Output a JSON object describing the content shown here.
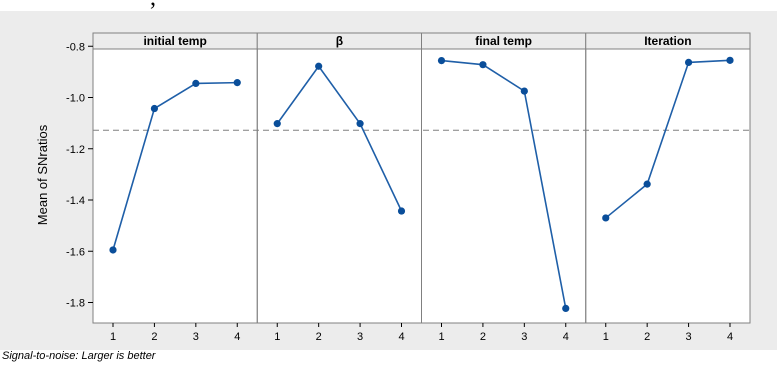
{
  "header_text": ", ",
  "footnote": "Signal-to-noise: Larger is better",
  "colors": {
    "line": "#1f5fa8",
    "marker": "#0a4e9a",
    "reference": "#808080",
    "panel_bg": "#ffffff",
    "outer_bg": "#ececec",
    "strip_bg": "#ececec"
  },
  "chart_data": {
    "type": "line",
    "title": "",
    "xlabel": "",
    "ylabel": "Mean of SNratios",
    "ylim": [
      -1.88,
      -0.76
    ],
    "yticks": [
      -0.8,
      -1.0,
      -1.2,
      -1.4,
      -1.6,
      -1.8
    ],
    "ytick_labels": [
      "-0.8",
      "-1.0",
      "-1.2",
      "-1.4",
      "-1.6",
      "-1.8"
    ],
    "categories": [
      "1",
      "2",
      "3",
      "4"
    ],
    "reference_line": -1.128,
    "reference_style": "dashed",
    "panels": [
      {
        "name": "initial temp",
        "values": [
          -1.595,
          -1.043,
          -0.945,
          -0.942
        ]
      },
      {
        "name": "β",
        "values": [
          -1.102,
          -0.878,
          -1.102,
          -1.443
        ]
      },
      {
        "name": "final temp",
        "values": [
          -0.856,
          -0.872,
          -0.975,
          -1.823
        ]
      },
      {
        "name": "Iteration",
        "values": [
          -1.47,
          -1.338,
          -0.863,
          -0.855
        ]
      }
    ]
  }
}
